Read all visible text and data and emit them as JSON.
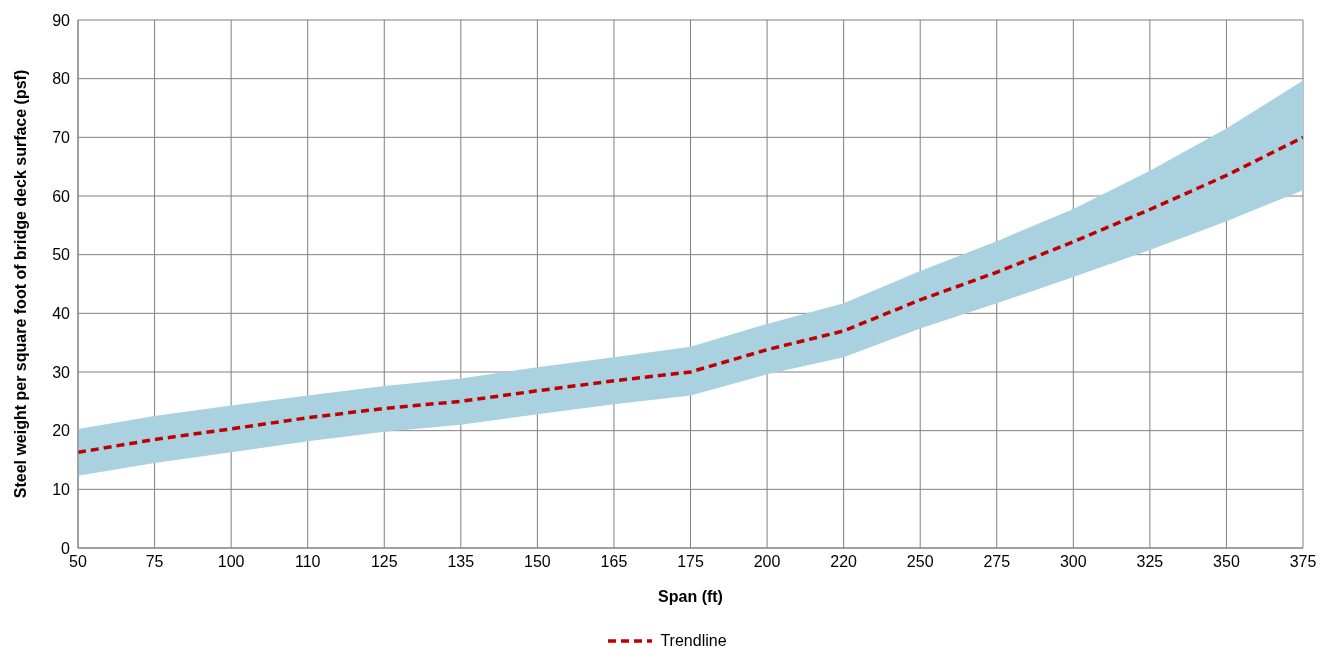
{
  "chart_data": {
    "type": "line",
    "xlabel": "Span (ft)",
    "ylabel": "Steel weight per square foot of bridge deck surface (psf)",
    "categories": [
      "50",
      "75",
      "100",
      "110",
      "125",
      "135",
      "150",
      "165",
      "175",
      "200",
      "220",
      "250",
      "275",
      "300",
      "325",
      "350",
      "375"
    ],
    "series": [
      {
        "name": "Trendline",
        "color": "#c00000",
        "line_style": "dashed",
        "marker": "none",
        "values": [
          16.3,
          18.5,
          20.3,
          22.2,
          23.8,
          25,
          26.8,
          28.5,
          30,
          33.8,
          37,
          42.3,
          47,
          52.2,
          57.7,
          63.5,
          70
        ],
        "lower": [
          12.3,
          14.5,
          16.3,
          18.2,
          19.8,
          21,
          22.8,
          24.5,
          26,
          29.6,
          32.5,
          37.4,
          41.7,
          46.2,
          50.8,
          55.7,
          61
        ],
        "upper": [
          20.3,
          22.5,
          24.3,
          26,
          27.6,
          28.9,
          30.8,
          32.5,
          34.3,
          38.2,
          41.7,
          47.2,
          52.3,
          57.8,
          64.3,
          71.5,
          79.7
        ]
      }
    ],
    "ylim": [
      0,
      90
    ],
    "yticks": [
      0,
      10,
      20,
      30,
      40,
      50,
      60,
      70,
      80,
      90
    ],
    "grid": true,
    "legend": "bottom"
  }
}
